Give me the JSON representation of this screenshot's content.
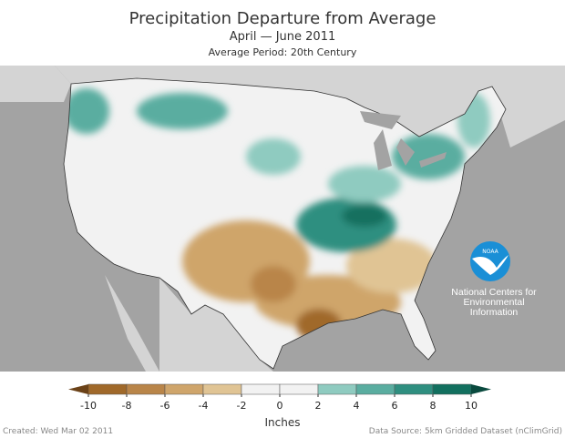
{
  "title": "Precipitation Departure from Average",
  "subtitle": "April — June 2011",
  "average_period": "Average Period: 20th Century",
  "logo": {
    "text": "NOAA",
    "org_lines": [
      "National Centers for",
      "Environmental",
      "Information"
    ]
  },
  "legend": {
    "unit": "Inches",
    "ticks": [
      "-10",
      "-8",
      "-6",
      "-4",
      "-2",
      "0",
      "2",
      "4",
      "6",
      "8",
      "10"
    ],
    "colors": [
      "#a0692a",
      "#b98549",
      "#cfa56b",
      "#e0c494",
      "#f2f2f2",
      "#f2f2f2",
      "#8fcbc0",
      "#5aada0",
      "#2f8f80",
      "#12705f"
    ],
    "low_arrow_color": "#6b4218",
    "high_arrow_color": "#0a4a3e"
  },
  "footer": {
    "created": "Created: Wed Mar 02 2011",
    "source": "Data Source: 5km Gridded Dataset (nClimGrid)"
  },
  "colors": {
    "ocean": "#a3a3a3",
    "canada": "#d4d4d4",
    "land": "#f2f2f2",
    "lakes": "#a3a3a3"
  }
}
